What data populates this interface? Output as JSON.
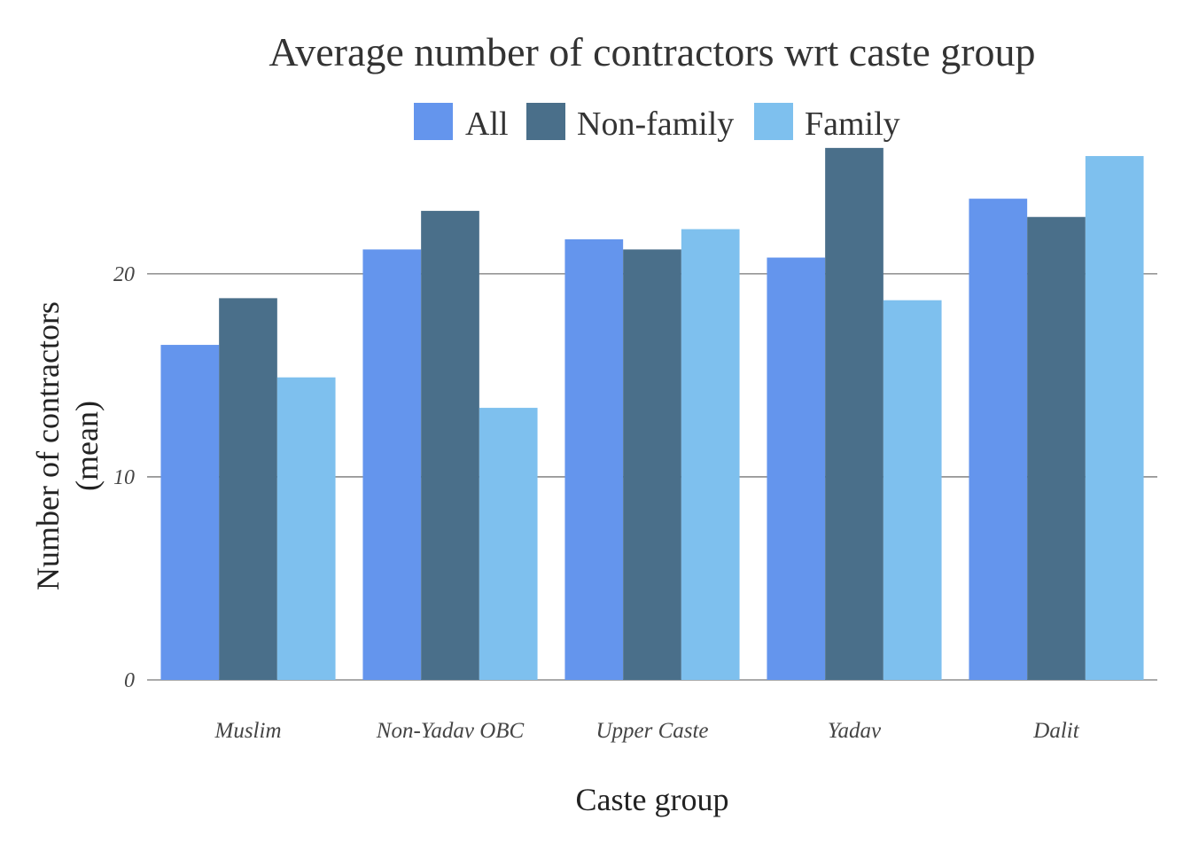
{
  "chart_data": {
    "type": "bar",
    "title": "Average number of contractors wrt caste group",
    "xlabel": "Caste group",
    "ylabel_lines": [
      "Number of contractors",
      "(mean)"
    ],
    "categories": [
      "Muslim",
      "Non-Yadav OBC",
      "Upper Caste",
      "Yadav",
      "Dalit"
    ],
    "series": [
      {
        "name": "All",
        "color": "#6495ED",
        "values": [
          16.5,
          21.2,
          21.7,
          20.8,
          23.7
        ]
      },
      {
        "name": "Non-family",
        "color": "#4A6F8A",
        "values": [
          18.8,
          23.1,
          21.2,
          26.2,
          22.8
        ]
      },
      {
        "name": "Family",
        "color": "#7EC0EE",
        "values": [
          14.9,
          13.4,
          22.2,
          18.7,
          25.8
        ]
      }
    ],
    "yticks": [
      0,
      10,
      20
    ],
    "ylim": [
      0,
      26.5
    ],
    "grid": true,
    "legend_position": "top"
  }
}
